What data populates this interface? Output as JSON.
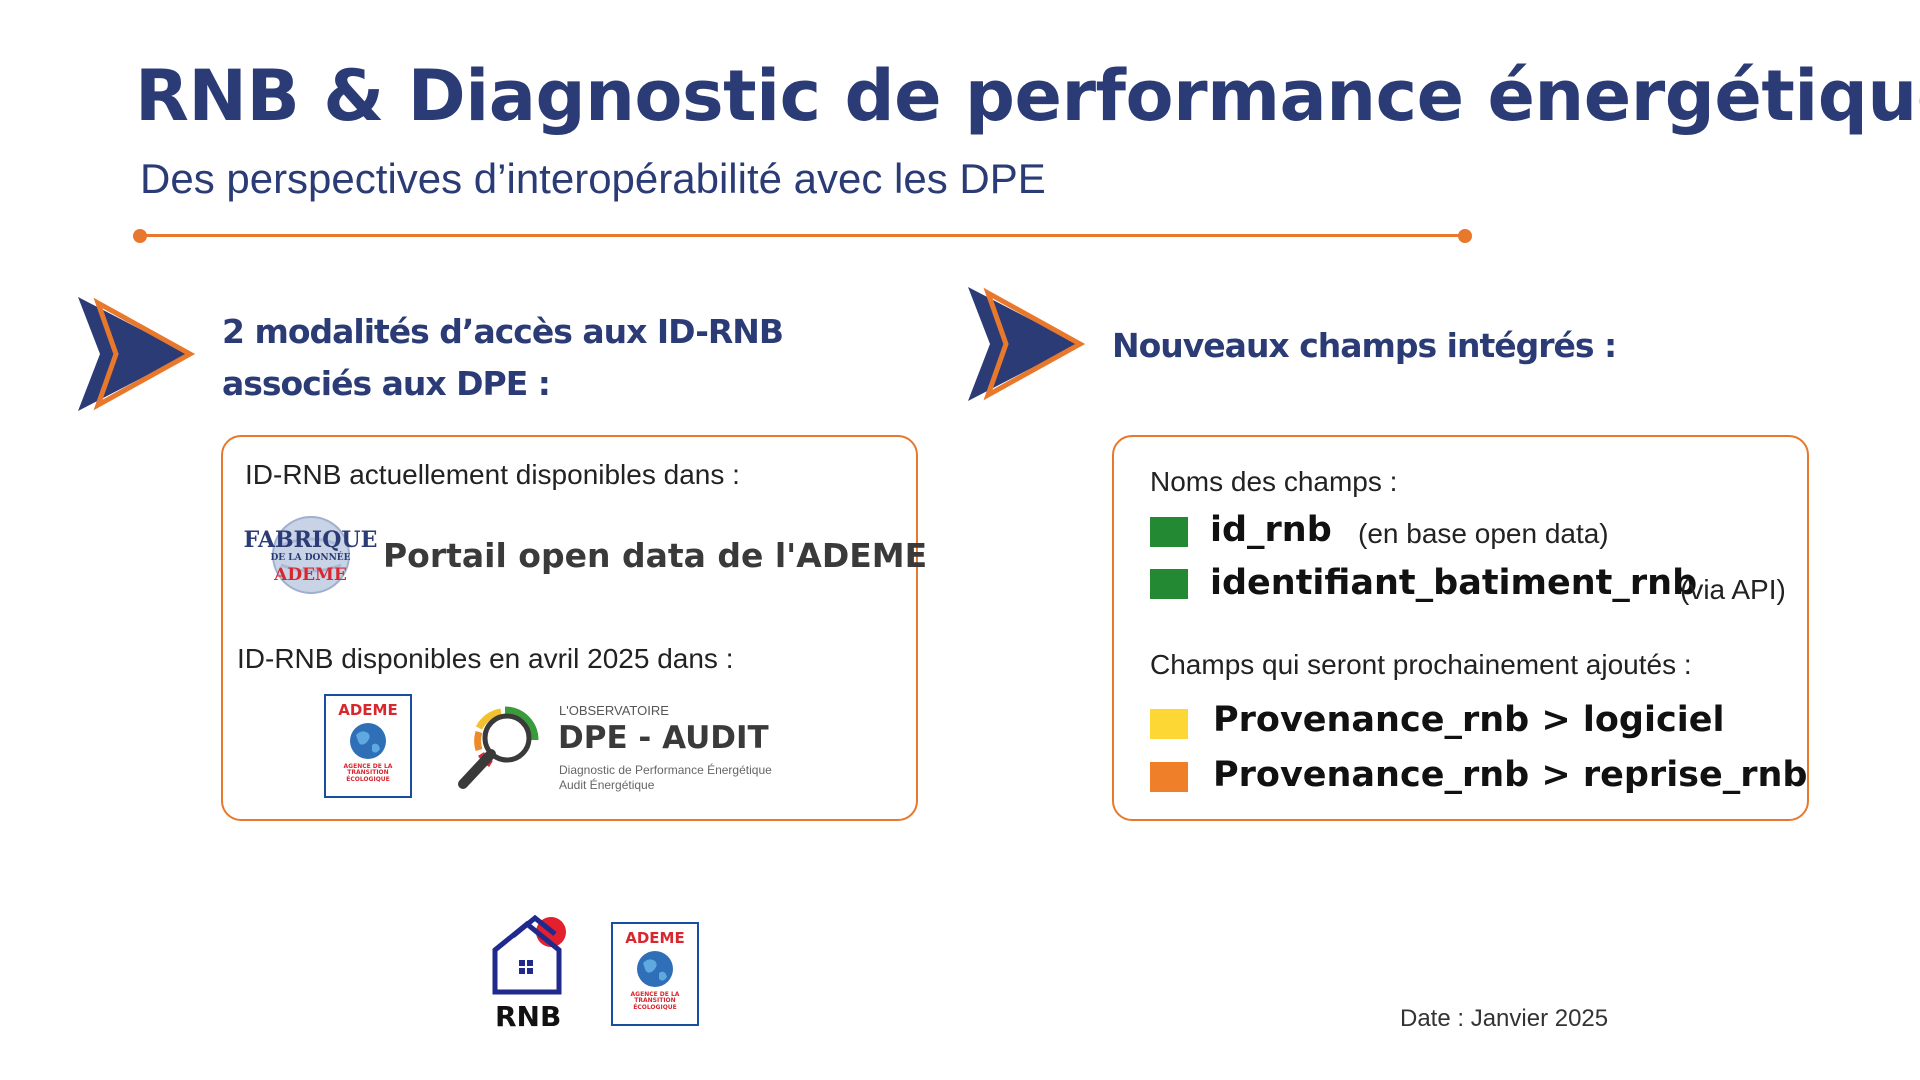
{
  "title": "RNB & Diagnostic de performance énergétique",
  "subtitle": "Des perspectives d’interopérabilité avec les DPE",
  "left_section": {
    "heading_line1": "2 modalités d’accès aux ID-RNB",
    "heading_line2": "associés aux DPE :",
    "available_now_label": "ID-RNB actuellement disponibles dans :",
    "fabrique_logo": {
      "line1": "FABRIQUE",
      "line2": "DE LA DONNÉE",
      "line3": "ADEME"
    },
    "portal_name": "Portail open data de l'ADEME",
    "available_april_label": "ID-RNB disponibles en avril 2025 dans  :",
    "ademe_logo": {
      "word": "ADEME",
      "sub1": "AGENCE DE LA",
      "sub2": "TRANSITION",
      "sub3": "ÉCOLOGIQUE"
    },
    "observatoire_logo": {
      "small": "L'OBSERVATOIRE",
      "big": "DPE - AUDIT",
      "desc1": "Diagnostic de Performance Énergétique",
      "desc2": "Audit Énergétique"
    }
  },
  "right_section": {
    "heading": "Nouveaux champs intégrés  :",
    "names_label": "Noms des champs :",
    "fields": [
      {
        "name": "id_rnb",
        "note": "(en base open data)",
        "color": "#238a33"
      },
      {
        "name": "identifiant_batiment_rnb",
        "note": "(via API)",
        "color": "#238a33"
      }
    ],
    "upcoming_label": "Champs qui seront prochainement ajoutés :",
    "upcoming_fields": [
      {
        "name": "Provenance_rnb > logiciel",
        "color": "#fdd835"
      },
      {
        "name": "Provenance_rnb > reprise_rnb",
        "color": "#f07f2a"
      }
    ]
  },
  "footer": {
    "rnb_logo_label": "RNB",
    "ademe_logo": {
      "word": "ADEME",
      "sub1": "AGENCE DE LA",
      "sub2": "TRANSITION",
      "sub3": "ÉCOLOGIQUE"
    },
    "date": "Date : Janvier 2025"
  },
  "colors": {
    "navy": "#2b3b76",
    "orange": "#e8782b"
  }
}
